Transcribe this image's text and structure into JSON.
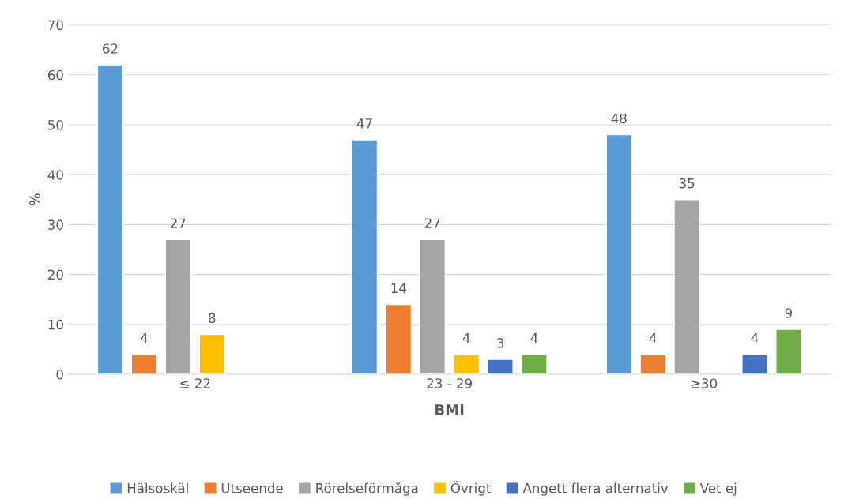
{
  "chart_data": {
    "type": "bar",
    "xlabel": "BMI",
    "ylabel": "%",
    "categories": [
      "≤ 22",
      "23 - 29",
      "≥30"
    ],
    "series": [
      {
        "name": "Hälsoskäl",
        "color": "#5b9bd5",
        "values": [
          62,
          47,
          48
        ]
      },
      {
        "name": "Utseende",
        "color": "#ed7d31",
        "values": [
          4,
          14,
          4
        ]
      },
      {
        "name": "Rörelseförmåga",
        "color": "#a5a5a5",
        "values": [
          27,
          27,
          35
        ]
      },
      {
        "name": "Övrigt",
        "color": "#ffc000",
        "values": [
          8,
          4,
          null
        ]
      },
      {
        "name": "Angett flera alternativ",
        "color": "#4472c4",
        "values": [
          null,
          3,
          4
        ]
      },
      {
        "name": "Vet ej",
        "color": "#70ad47",
        "values": [
          null,
          4,
          9
        ]
      }
    ],
    "ylim": [
      0,
      70
    ],
    "yticks": [
      0,
      10,
      20,
      30,
      40,
      50,
      60,
      70
    ],
    "grid": "y",
    "legend": "bottom",
    "data_labels": true
  }
}
